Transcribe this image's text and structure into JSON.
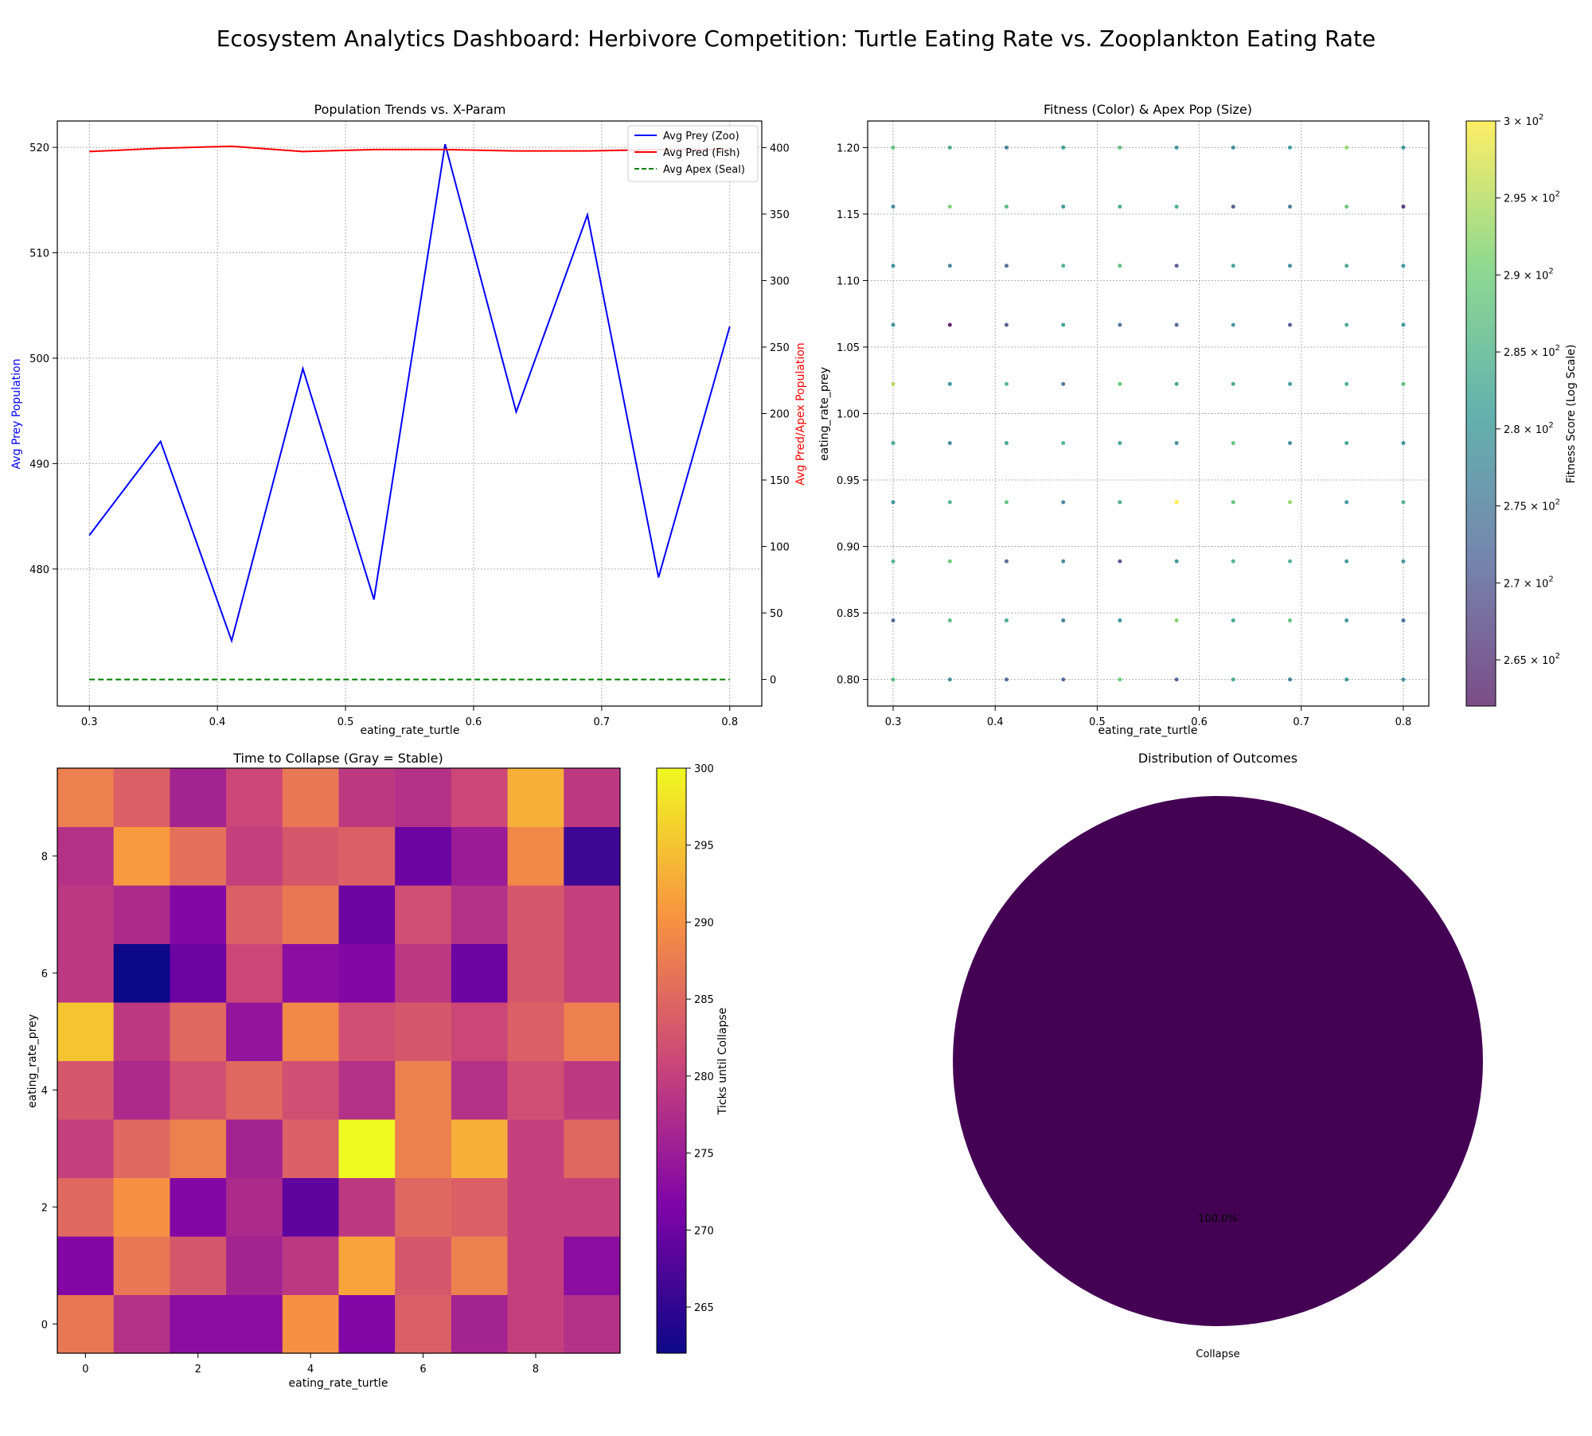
{
  "suptitle": "Ecosystem Analytics Dashboard: Herbivore Competition: Turtle Eating Rate vs. Zooplankton Eating Rate",
  "chart_data": [
    {
      "type": "line",
      "title": "Population Trends vs. X-Param",
      "xlabel": "eating_rate_turtle",
      "ylabel_left": "Avg Prey Population",
      "ylabel_right": "Avg Pred/Apex Population",
      "xlim": [
        0.275,
        0.825
      ],
      "ylim_left": [
        467,
        522.5
      ],
      "ylim_right": [
        -20,
        420
      ],
      "x_ticks": [
        "0.3",
        "0.4",
        "0.5",
        "0.6",
        "0.7",
        "0.8"
      ],
      "y_left_ticks": [
        "480",
        "490",
        "500",
        "510",
        "520"
      ],
      "y_right_ticks": [
        "0",
        "50",
        "100",
        "150",
        "200",
        "250",
        "300",
        "350",
        "400"
      ],
      "grid": true,
      "legend_position": "top-right",
      "x": [
        0.3,
        0.3556,
        0.4111,
        0.4667,
        0.5222,
        0.5778,
        0.6333,
        0.6889,
        0.7444,
        0.8
      ],
      "series": [
        {
          "name": "Avg Prey (Zoo)",
          "axis": "left",
          "color": "#0000ff",
          "style": "solid",
          "values": [
            483.2,
            492.1,
            473.2,
            499.0,
            477.1,
            520.3,
            494.9,
            513.6,
            479.2,
            503.0
          ]
        },
        {
          "name": "Avg Pred (Fish)",
          "axis": "right",
          "color": "#ff0000",
          "style": "solid",
          "values": [
            397,
            399.5,
            401,
            397,
            398.5,
            398.5,
            397.5,
            397.5,
            398.5,
            398.5
          ]
        },
        {
          "name": "Avg Apex (Seal)",
          "axis": "right",
          "color": "#008000",
          "style": "dashed",
          "values": [
            0,
            0,
            0,
            0,
            0,
            0,
            0,
            0,
            0,
            0
          ]
        }
      ]
    },
    {
      "type": "scatter",
      "title": "Fitness (Color) & Apex Pop (Size)",
      "xlabel": "eating_rate_turtle",
      "ylabel": "eating_rate_prey",
      "xlim": [
        0.275,
        0.825
      ],
      "ylim": [
        0.78,
        1.22
      ],
      "x_ticks": [
        "0.3",
        "0.4",
        "0.5",
        "0.6",
        "0.7",
        "0.8"
      ],
      "y_ticks": [
        "0.80",
        "0.85",
        "0.90",
        "0.95",
        "1.00",
        "1.05",
        "1.10",
        "1.15",
        "1.20"
      ],
      "grid": true,
      "colorbar_label": "Fitness Score (Log Scale)",
      "colorbar_ticks": [
        "2.65",
        "2.7",
        "2.75",
        "2.8",
        "2.85",
        "2.9",
        "2.95",
        "3"
      ],
      "colorbar_range": [
        262,
        300
      ],
      "colormap": "viridis",
      "x": [
        0.3,
        0.3556,
        0.4111,
        0.4667,
        0.5222,
        0.5778,
        0.6333,
        0.6889,
        0.7444,
        0.8
      ],
      "y": [
        0.8,
        0.8444,
        0.8889,
        0.9333,
        0.9778,
        1.0222,
        1.0667,
        1.1111,
        1.1556,
        1.2
      ],
      "fitness_grid": [
        [
          287,
          278,
          273,
          273,
          290,
          272,
          284,
          276,
          280,
          278
        ],
        [
          272,
          287,
          283,
          276,
          279,
          292,
          283,
          288,
          280,
          273
        ],
        [
          285,
          290,
          272,
          277,
          269,
          279,
          285,
          284,
          280,
          280
        ],
        [
          280,
          285,
          288,
          276,
          284,
          300,
          288,
          293,
          280,
          285
        ],
        [
          283,
          277,
          282,
          285,
          282,
          278,
          288,
          278,
          282,
          279
        ],
        [
          295,
          279,
          285,
          274,
          289,
          282,
          283,
          281,
          284,
          288
        ],
        [
          279,
          262,
          270,
          281,
          273,
          272,
          279,
          270,
          283,
          280
        ],
        [
          279,
          277,
          272,
          284,
          287,
          270,
          282,
          278,
          283,
          280
        ],
        [
          278,
          291,
          286,
          280,
          283,
          284,
          270,
          275,
          289,
          266
        ],
        [
          288,
          284,
          276,
          281,
          287,
          279,
          278,
          281,
          293,
          279
        ]
      ]
    },
    {
      "type": "heatmap",
      "title": "Time to Collapse (Gray = Stable)",
      "xlabel": "eating_rate_turtle",
      "ylabel": "eating_rate_prey",
      "x_ticks": [
        "0",
        "2",
        "4",
        "6",
        "8"
      ],
      "y_ticks": [
        "0",
        "2",
        "4",
        "6",
        "8"
      ],
      "colorbar_label": "Ticks until Collapse",
      "colorbar_ticks": [
        "265",
        "270",
        "275",
        "280",
        "285",
        "290",
        "295",
        "300"
      ],
      "colorbar_range": [
        262,
        300
      ],
      "colormap": "plasma",
      "values": [
        [
          287,
          278,
          273,
          273,
          290,
          272,
          284,
          276,
          280,
          278
        ],
        [
          272,
          287,
          283,
          276,
          279,
          292,
          283,
          288,
          280,
          273
        ],
        [
          285,
          290,
          272,
          277,
          269,
          279,
          285,
          284,
          280,
          280
        ],
        [
          280,
          285,
          288,
          276,
          284,
          300,
          288,
          293,
          280,
          285
        ],
        [
          283,
          277,
          282,
          285,
          282,
          278,
          288,
          278,
          282,
          279
        ],
        [
          295,
          279,
          285,
          274,
          289,
          282,
          283,
          281,
          284,
          288
        ],
        [
          279,
          262,
          270,
          281,
          273,
          272,
          279,
          270,
          283,
          280
        ],
        [
          279,
          277,
          272,
          284,
          287,
          270,
          282,
          278,
          283,
          280
        ],
        [
          278,
          291,
          286,
          280,
          283,
          284,
          270,
          275,
          289,
          266
        ],
        [
          288,
          284,
          276,
          281,
          287,
          279,
          278,
          281,
          293,
          279
        ]
      ]
    },
    {
      "type": "pie",
      "title": "Distribution of Outcomes",
      "labels": [
        "Collapse"
      ],
      "values": [
        100
      ],
      "percent_labels": [
        "100.0%"
      ],
      "colors": [
        "#440154"
      ]
    }
  ]
}
